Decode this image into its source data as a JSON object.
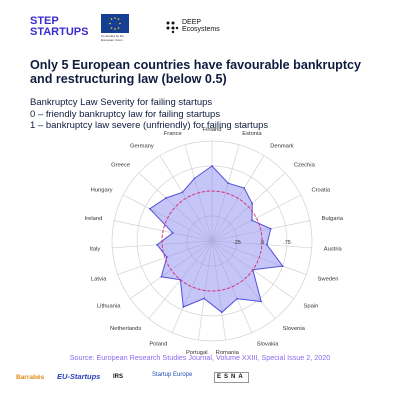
{
  "header": {
    "step_startups_logo": "STEP STARTUPS",
    "eu_note": "Co-funded by the European Union",
    "deep_logo": "DEEP Ecosystems"
  },
  "title": "Only 5 European countries have favourable bankruptcy and restructuring law (below 0.5)",
  "subtitle_lines": [
    "Bankruptcy Law Severity for failing startups",
    "0 – friendly bankruptcy law for failing startups",
    "1 – bankruptcy law severe (unfriendly) for failing startups"
  ],
  "chart_data": {
    "type": "radar",
    "categories": [
      "Finland",
      "Estonia",
      "Denmark",
      "Czechia",
      "Croatia",
      "Bulgaria",
      "Austria",
      "Sweden",
      "Spain",
      "Slovenia",
      "Slovakia",
      "Romania",
      "Portugal",
      "Poland",
      "Netherlands",
      "Lithuania",
      "Latvia",
      "Italy",
      "Ireland",
      "Hungary",
      "Greece",
      "Germany",
      "France"
    ],
    "values": [
      0.75,
      0.6,
      0.62,
      0.55,
      0.45,
      0.6,
      0.55,
      0.75,
      0.5,
      0.78,
      0.63,
      0.72,
      0.58,
      0.72,
      0.5,
      0.62,
      0.48,
      0.55,
      0.4,
      0.7,
      0.63,
      0.57,
      0.65
    ],
    "tick_labels": [
      ".25",
      ".5",
      ".75"
    ],
    "rlim": [
      0,
      1
    ],
    "threshold": 0.5,
    "colors": {
      "fill": "#8c8cf2",
      "line": "#5050d8",
      "threshold": "#e0307a",
      "grid": "#d2d2d2"
    }
  },
  "footer": {
    "source": "Source: European Research Studies Journal, Volume XXIII, Special Issue 2, 2020",
    "logos": [
      "Barrabés",
      "EU-Startups",
      "IRS",
      "Startup Europe",
      "ESNA"
    ]
  }
}
